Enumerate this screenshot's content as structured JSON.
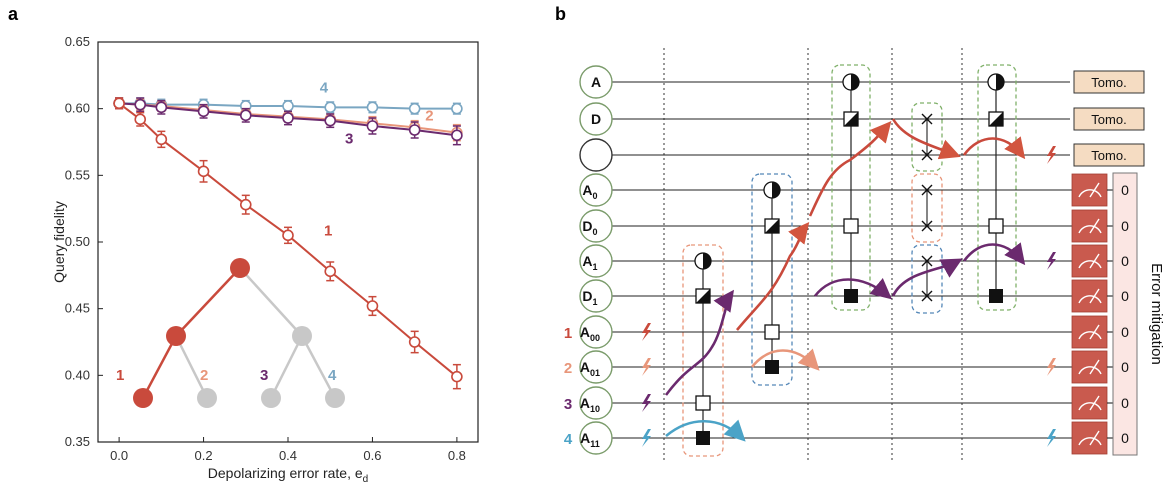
{
  "panel_a": {
    "label": "a",
    "chart_data": {
      "type": "line",
      "xlabel": "Depolarizing error rate, e",
      "xlabel_sub": "d",
      "ylabel": "Query fidelity",
      "xlim": [
        -0.05,
        0.85
      ],
      "ylim": [
        0.35,
        0.65
      ],
      "x_ticks": [
        "0.0",
        "0.2",
        "0.4",
        "0.6",
        "0.8"
      ],
      "y_ticks": [
        "0.35",
        "0.40",
        "0.45",
        "0.50",
        "0.55",
        "0.60",
        "0.65"
      ],
      "x": [
        0.0,
        0.05,
        0.1,
        0.2,
        0.3,
        0.4,
        0.5,
        0.6,
        0.7,
        0.8
      ],
      "series": [
        {
          "name": "1",
          "color": "#c94a3c",
          "values": [
            0.604,
            0.592,
            0.577,
            0.553,
            0.528,
            0.505,
            0.478,
            0.452,
            0.425,
            0.399
          ],
          "err": [
            0.004,
            0.005,
            0.006,
            0.008,
            0.007,
            0.006,
            0.007,
            0.007,
            0.008,
            0.009
          ]
        },
        {
          "name": "2",
          "color": "#e8967a",
          "values": [
            0.604,
            0.603,
            0.602,
            0.599,
            0.596,
            0.594,
            0.592,
            0.589,
            0.586,
            0.582
          ],
          "err": [
            0.004,
            0.004,
            0.004,
            0.004,
            0.004,
            0.004,
            0.004,
            0.005,
            0.005,
            0.006
          ]
        },
        {
          "name": "3",
          "color": "#6b2a6e",
          "values": [
            0.604,
            0.603,
            0.601,
            0.598,
            0.595,
            0.593,
            0.591,
            0.587,
            0.584,
            0.58
          ],
          "err": [
            0.004,
            0.005,
            0.005,
            0.005,
            0.005,
            0.005,
            0.005,
            0.006,
            0.006,
            0.007
          ]
        },
        {
          "name": "4",
          "color": "#7aa6c2",
          "values": [
            0.604,
            0.604,
            0.603,
            0.603,
            0.602,
            0.602,
            0.601,
            0.601,
            0.6,
            0.6
          ],
          "err": [
            0.004,
            0.004,
            0.004,
            0.004,
            0.004,
            0.004,
            0.004,
            0.004,
            0.004,
            0.004
          ]
        }
      ]
    },
    "tree_labels": [
      "1",
      "2",
      "3",
      "4"
    ],
    "colors": {
      "q1": "#c94a3c",
      "q2": "#e8967a",
      "q3": "#6b2a6e",
      "q4": "#7aa6c2",
      "grey": "#c8c8c8"
    }
  },
  "panel_b": {
    "label": "b",
    "qubits": [
      {
        "name": "A",
        "sub": ""
      },
      {
        "name": "D",
        "sub": ""
      },
      {
        "name": "",
        "sub": ""
      },
      {
        "name": "A",
        "sub": "0"
      },
      {
        "name": "D",
        "sub": "0"
      },
      {
        "name": "A",
        "sub": "1"
      },
      {
        "name": "D",
        "sub": "1"
      },
      {
        "name": "A",
        "sub": "00"
      },
      {
        "name": "A",
        "sub": "01"
      },
      {
        "name": "A",
        "sub": "10"
      },
      {
        "name": "A",
        "sub": "11"
      }
    ],
    "query_numbers": [
      "1",
      "2",
      "3",
      "4"
    ],
    "tomo_label": "Tomo.",
    "readout_zero": "0",
    "error_mitigation": "Error mitigation"
  }
}
